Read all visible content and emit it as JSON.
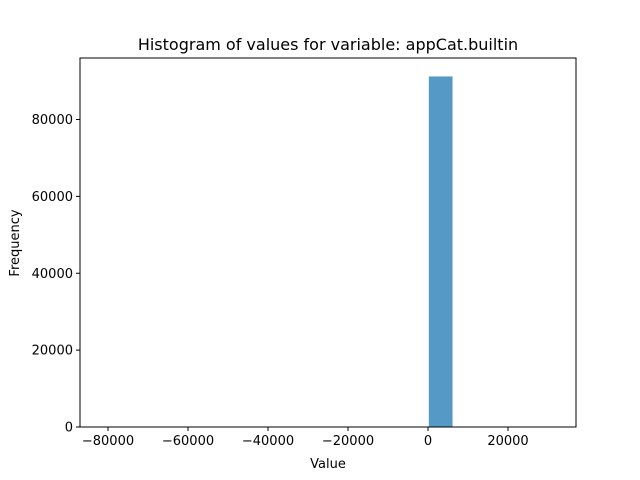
{
  "chart_data": {
    "type": "bar",
    "title": "Histogram of values for variable: appCat.builtin",
    "xlabel": "Value",
    "ylabel": "Frequency",
    "xlim": [
      -87000,
      37000
    ],
    "ylim": [
      0,
      96000
    ],
    "grid": false,
    "legend": "none",
    "bar_color": "#5599c7",
    "bins": [
      {
        "x0": -82798,
        "x1": -76869,
        "count": 1
      },
      {
        "x0": -76869,
        "x1": -70940,
        "count": 0
      },
      {
        "x0": -70940,
        "x1": -65011,
        "count": 0
      },
      {
        "x0": -65011,
        "x1": -59082,
        "count": 0
      },
      {
        "x0": -59082,
        "x1": -53153,
        "count": 0
      },
      {
        "x0": -53153,
        "x1": -47224,
        "count": 0
      },
      {
        "x0": -47224,
        "x1": -41295,
        "count": 0
      },
      {
        "x0": -41295,
        "x1": -35366,
        "count": 0
      },
      {
        "x0": -35366,
        "x1": -29437,
        "count": 0
      },
      {
        "x0": -29437,
        "x1": -23508,
        "count": 0
      },
      {
        "x0": -23508,
        "x1": -17579,
        "count": 0
      },
      {
        "x0": -17579,
        "x1": -11650,
        "count": 0
      },
      {
        "x0": -11650,
        "x1": -5721,
        "count": 0
      },
      {
        "x0": -5721,
        "x1": 208,
        "count": 12
      },
      {
        "x0": 208,
        "x1": 6137,
        "count": 91200
      },
      {
        "x0": 6137,
        "x1": 12066,
        "count": 20
      },
      {
        "x0": 12066,
        "x1": 17995,
        "count": 4
      },
      {
        "x0": 17995,
        "x1": 23924,
        "count": 2
      },
      {
        "x0": 23924,
        "x1": 29853,
        "count": 1
      },
      {
        "x0": 29853,
        "x1": 33372,
        "count": 1
      }
    ],
    "x_ticks": [
      {
        "value": -80000,
        "label": "−80000"
      },
      {
        "value": -60000,
        "label": "−60000"
      },
      {
        "value": -40000,
        "label": "−40000"
      },
      {
        "value": -20000,
        "label": "−20000"
      },
      {
        "value": 0,
        "label": "0"
      },
      {
        "value": 20000,
        "label": "20000"
      }
    ],
    "y_ticks": [
      {
        "value": 0,
        "label": "0"
      },
      {
        "value": 20000,
        "label": "20000"
      },
      {
        "value": 40000,
        "label": "40000"
      },
      {
        "value": 60000,
        "label": "60000"
      },
      {
        "value": 80000,
        "label": "80000"
      }
    ]
  }
}
